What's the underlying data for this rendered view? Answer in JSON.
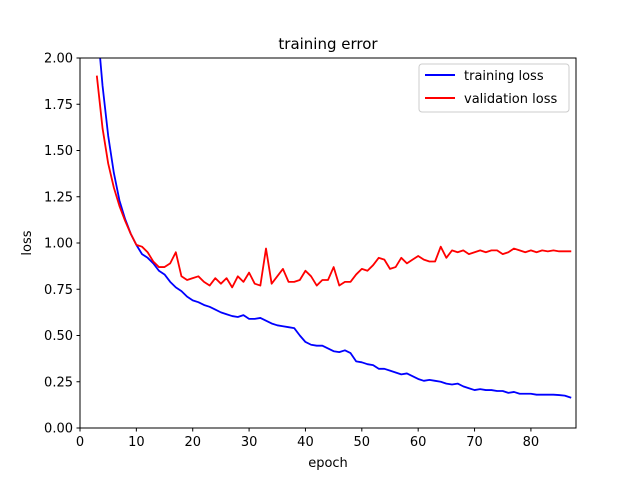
{
  "chart_data": {
    "type": "line",
    "title": "training error",
    "xlabel": "epoch",
    "ylabel": "loss",
    "xlim": [
      0,
      88
    ],
    "ylim": [
      0.0,
      2.0
    ],
    "xticks": [
      0,
      10,
      20,
      30,
      40,
      50,
      60,
      70,
      80
    ],
    "xtick_labels": [
      "0",
      "10",
      "20",
      "30",
      "40",
      "50",
      "60",
      "70",
      "80"
    ],
    "yticks": [
      0.0,
      0.25,
      0.5,
      0.75,
      1.0,
      1.25,
      1.5,
      1.75,
      2.0
    ],
    "ytick_labels": [
      "0.00",
      "0.25",
      "0.50",
      "0.75",
      "1.00",
      "1.25",
      "1.50",
      "1.75",
      "2.00"
    ],
    "grid": false,
    "legend_position": "top-right",
    "series": [
      {
        "name": "training loss",
        "color": "#0000ff",
        "x": [
          3,
          4,
          5,
          6,
          7,
          8,
          9,
          10,
          11,
          12,
          13,
          14,
          15,
          16,
          17,
          18,
          19,
          20,
          21,
          22,
          23,
          24,
          25,
          26,
          27,
          28,
          29,
          30,
          31,
          32,
          33,
          34,
          35,
          36,
          37,
          38,
          39,
          40,
          41,
          42,
          43,
          44,
          45,
          46,
          47,
          48,
          49,
          50,
          51,
          52,
          53,
          54,
          55,
          56,
          57,
          58,
          59,
          60,
          61,
          62,
          63,
          64,
          65,
          66,
          67,
          68,
          69,
          70,
          71,
          72,
          73,
          74,
          75,
          76,
          77,
          78,
          79,
          80,
          81,
          82,
          83,
          84,
          85,
          86,
          87
        ],
        "values": [
          2.2,
          1.85,
          1.58,
          1.38,
          1.23,
          1.13,
          1.05,
          0.99,
          0.94,
          0.92,
          0.89,
          0.85,
          0.83,
          0.79,
          0.76,
          0.74,
          0.71,
          0.69,
          0.68,
          0.665,
          0.655,
          0.64,
          0.625,
          0.615,
          0.605,
          0.6,
          0.61,
          0.59,
          0.59,
          0.595,
          0.58,
          0.565,
          0.555,
          0.55,
          0.545,
          0.54,
          0.5,
          0.465,
          0.45,
          0.445,
          0.445,
          0.43,
          0.415,
          0.41,
          0.42,
          0.405,
          0.36,
          0.355,
          0.345,
          0.34,
          0.32,
          0.32,
          0.31,
          0.3,
          0.29,
          0.295,
          0.28,
          0.265,
          0.255,
          0.26,
          0.255,
          0.25,
          0.24,
          0.235,
          0.24,
          0.225,
          0.215,
          0.205,
          0.21,
          0.205,
          0.205,
          0.2,
          0.2,
          0.19,
          0.195,
          0.185,
          0.185,
          0.185,
          0.18,
          0.18,
          0.18,
          0.18,
          0.178,
          0.175,
          0.165
        ]
      },
      {
        "name": "validation loss",
        "color": "#ff0000",
        "x": [
          3,
          4,
          5,
          6,
          7,
          8,
          9,
          10,
          11,
          12,
          13,
          14,
          15,
          16,
          17,
          18,
          19,
          20,
          21,
          22,
          23,
          24,
          25,
          26,
          27,
          28,
          29,
          30,
          31,
          32,
          33,
          34,
          35,
          36,
          37,
          38,
          39,
          40,
          41,
          42,
          43,
          44,
          45,
          46,
          47,
          48,
          49,
          50,
          51,
          52,
          53,
          54,
          55,
          56,
          57,
          58,
          59,
          60,
          61,
          62,
          63,
          64,
          65,
          66,
          67,
          68,
          69,
          70,
          71,
          72,
          73,
          74,
          75,
          76,
          77,
          78,
          79,
          80,
          81,
          82,
          83,
          84,
          85,
          86,
          87
        ],
        "values": [
          1.9,
          1.62,
          1.43,
          1.3,
          1.2,
          1.12,
          1.05,
          0.99,
          0.98,
          0.95,
          0.9,
          0.87,
          0.87,
          0.89,
          0.95,
          0.82,
          0.8,
          0.81,
          0.82,
          0.79,
          0.77,
          0.81,
          0.78,
          0.81,
          0.76,
          0.82,
          0.79,
          0.84,
          0.78,
          0.77,
          0.97,
          0.78,
          0.82,
          0.86,
          0.79,
          0.79,
          0.8,
          0.85,
          0.82,
          0.77,
          0.8,
          0.8,
          0.87,
          0.77,
          0.79,
          0.79,
          0.83,
          0.86,
          0.85,
          0.88,
          0.92,
          0.91,
          0.86,
          0.87,
          0.92,
          0.89,
          0.91,
          0.93,
          0.91,
          0.9,
          0.9,
          0.98,
          0.92,
          0.96,
          0.95,
          0.96,
          0.94,
          0.95,
          0.96,
          0.95,
          0.96,
          0.96,
          0.94,
          0.95,
          0.97,
          0.96,
          0.95,
          0.96,
          0.95,
          0.96,
          0.955,
          0.96,
          0.955,
          0.955,
          0.955
        ]
      }
    ]
  }
}
